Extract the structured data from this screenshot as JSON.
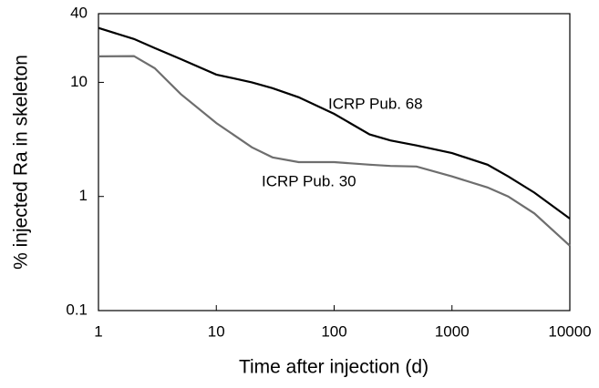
{
  "chart_data": {
    "type": "line",
    "x_label": "Time after injection (d)",
    "y_label": "% injected Ra in skeleton",
    "x": [
      1,
      2,
      3,
      5,
      10,
      20,
      30,
      50,
      100,
      200,
      300,
      500,
      1000,
      2000,
      3000,
      5000,
      10000
    ],
    "series": [
      {
        "name": "ICRP Pub. 68",
        "color": "#000000",
        "values": [
          30,
          24,
          20,
          16,
          11.7,
          10,
          8.9,
          7.4,
          5.3,
          3.5,
          3.1,
          2.8,
          2.4,
          1.9,
          1.5,
          1.08,
          0.64
        ]
      },
      {
        "name": "ICRP Pub. 30",
        "color": "#6e6e6e",
        "values": [
          16.9,
          17,
          13.3,
          7.9,
          4.4,
          2.7,
          2.2,
          2.0,
          2.0,
          1.9,
          1.85,
          1.83,
          1.5,
          1.2,
          1.0,
          0.71,
          0.37
        ]
      }
    ],
    "xlim": [
      1,
      10000
    ],
    "ylim": [
      0.1,
      40
    ],
    "xticks": [
      1,
      10,
      100,
      1000,
      10000
    ],
    "yticks": [
      0.1,
      1,
      10,
      40
    ],
    "x_log": true,
    "y_log": true
  }
}
